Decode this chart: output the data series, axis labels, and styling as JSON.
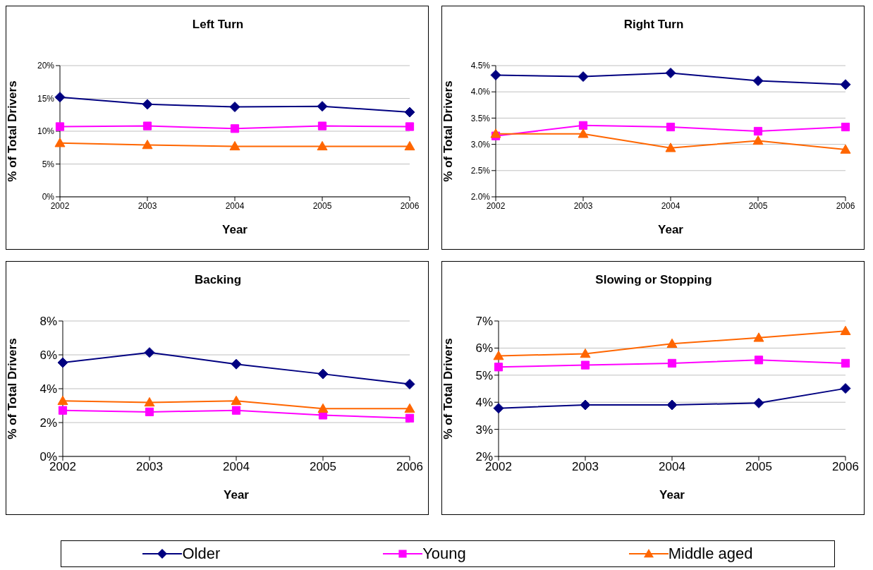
{
  "chart_data": [
    {
      "type": "line",
      "title": "Left Turn",
      "xlabel": "Year",
      "ylabel": "% of Total Drivers",
      "categories": [
        "2002",
        "2003",
        "2004",
        "2005",
        "2006"
      ],
      "ylim": [
        0,
        20
      ],
      "yticks": [
        {
          "value": 0,
          "label": "0%"
        },
        {
          "value": 5,
          "label": "5%"
        },
        {
          "value": 10,
          "label": "10%"
        },
        {
          "value": 15,
          "label": "15%"
        },
        {
          "value": 20,
          "label": "20%"
        }
      ],
      "grid": "y",
      "legend": "bottom",
      "series": [
        {
          "name": "Older",
          "color": "#000080",
          "marker": "diamond",
          "values": [
            15.2,
            14.1,
            13.7,
            13.8,
            12.9
          ]
        },
        {
          "name": "Young",
          "color": "#ff00ff",
          "marker": "square",
          "values": [
            10.7,
            10.8,
            10.4,
            10.8,
            10.7
          ]
        },
        {
          "name": "Middle aged",
          "color": "#ff6600",
          "marker": "triangle",
          "values": [
            8.2,
            7.9,
            7.7,
            7.7,
            7.7
          ]
        }
      ]
    },
    {
      "type": "line",
      "title": "Right Turn",
      "xlabel": "Year",
      "ylabel": "% of Total Drivers",
      "categories": [
        "2002",
        "2003",
        "2004",
        "2005",
        "2006"
      ],
      "ylim": [
        2,
        4.5
      ],
      "yticks": [
        {
          "value": 2,
          "label": "2.0%"
        },
        {
          "value": 2.5,
          "label": "2.5%"
        },
        {
          "value": 3,
          "label": "3.0%"
        },
        {
          "value": 3.5,
          "label": "3.5%"
        },
        {
          "value": 4,
          "label": "4.0%"
        },
        {
          "value": 4.5,
          "label": "4.5%"
        }
      ],
      "grid": "y",
      "series": [
        {
          "color": "#000080",
          "marker": "diamond",
          "values": [
            4.32,
            4.29,
            4.36,
            4.21,
            4.14
          ]
        },
        {
          "color": "#ff00ff",
          "marker": "square",
          "values": [
            3.16,
            3.36,
            3.33,
            3.25,
            3.33
          ]
        },
        {
          "color": "#ff6600",
          "marker": "triangle",
          "values": [
            3.2,
            3.2,
            2.93,
            3.07,
            2.9
          ]
        }
      ]
    },
    {
      "type": "line",
      "title": "Backing",
      "xlabel": "Year",
      "ylabel": "% of Total Drivers",
      "categories": [
        "2002",
        "2003",
        "2004",
        "2005",
        "2006"
      ],
      "ylim": [
        0,
        8
      ],
      "yticks": [
        {
          "value": 0,
          "label": "0%"
        },
        {
          "value": 2,
          "label": "2%"
        },
        {
          "value": 4,
          "label": "4%"
        },
        {
          "value": 6,
          "label": "6%"
        },
        {
          "value": 8,
          "label": "8%"
        }
      ],
      "grid": "y",
      "series": [
        {
          "color": "#000080",
          "marker": "diamond",
          "values": [
            5.54,
            6.14,
            5.45,
            4.87,
            4.27
          ]
        },
        {
          "color": "#ff00ff",
          "marker": "square",
          "values": [
            2.72,
            2.63,
            2.72,
            2.44,
            2.26
          ]
        },
        {
          "color": "#ff6600",
          "marker": "triangle",
          "values": [
            3.28,
            3.19,
            3.28,
            2.82,
            2.82
          ]
        }
      ]
    },
    {
      "type": "line",
      "title": "Slowing or Stopping",
      "xlabel": "Year",
      "ylabel": "% of Total Drivers",
      "categories": [
        "2002",
        "2003",
        "2004",
        "2005",
        "2006"
      ],
      "ylim": [
        2,
        7
      ],
      "yticks": [
        {
          "value": 2,
          "label": "2%"
        },
        {
          "value": 3,
          "label": "3%"
        },
        {
          "value": 4,
          "label": "4%"
        },
        {
          "value": 5,
          "label": "5%"
        },
        {
          "value": 6,
          "label": "6%"
        },
        {
          "value": 7,
          "label": "7%"
        }
      ],
      "grid": "y",
      "series": [
        {
          "color": "#000080",
          "marker": "diamond",
          "values": [
            3.78,
            3.9,
            3.9,
            3.97,
            4.51
          ]
        },
        {
          "color": "#ff00ff",
          "marker": "square",
          "values": [
            5.3,
            5.37,
            5.44,
            5.56,
            5.44
          ]
        },
        {
          "color": "#ff6600",
          "marker": "triangle",
          "values": [
            5.71,
            5.79,
            6.16,
            6.38,
            6.63
          ]
        }
      ]
    }
  ]
}
